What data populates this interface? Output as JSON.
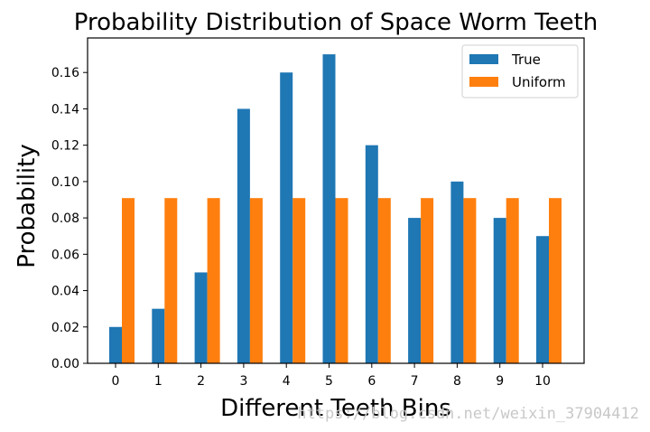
{
  "chart_data": {
    "type": "bar",
    "title": "Probability Distribution of Space Worm Teeth",
    "xlabel": "Different Teeth Bins",
    "ylabel": "Probability",
    "categories": [
      "0",
      "1",
      "2",
      "3",
      "4",
      "5",
      "6",
      "7",
      "8",
      "9",
      "10"
    ],
    "series": [
      {
        "name": "True",
        "color": "#1f77b4",
        "values": [
          0.02,
          0.03,
          0.05,
          0.14,
          0.16,
          0.17,
          0.12,
          0.08,
          0.1,
          0.08,
          0.07
        ]
      },
      {
        "name": "Uniform",
        "color": "#ff7f0e",
        "values": [
          0.0909,
          0.0909,
          0.0909,
          0.0909,
          0.0909,
          0.0909,
          0.0909,
          0.0909,
          0.0909,
          0.0909,
          0.0909
        ]
      }
    ],
    "ylim": [
      0,
      0.179
    ],
    "yticks": [
      "0.00",
      "0.02",
      "0.04",
      "0.06",
      "0.08",
      "0.10",
      "0.12",
      "0.14",
      "0.16"
    ],
    "legend_position": "top-right",
    "grid": false
  },
  "watermark": "https://blog.csdn.net/weixin_37904412"
}
